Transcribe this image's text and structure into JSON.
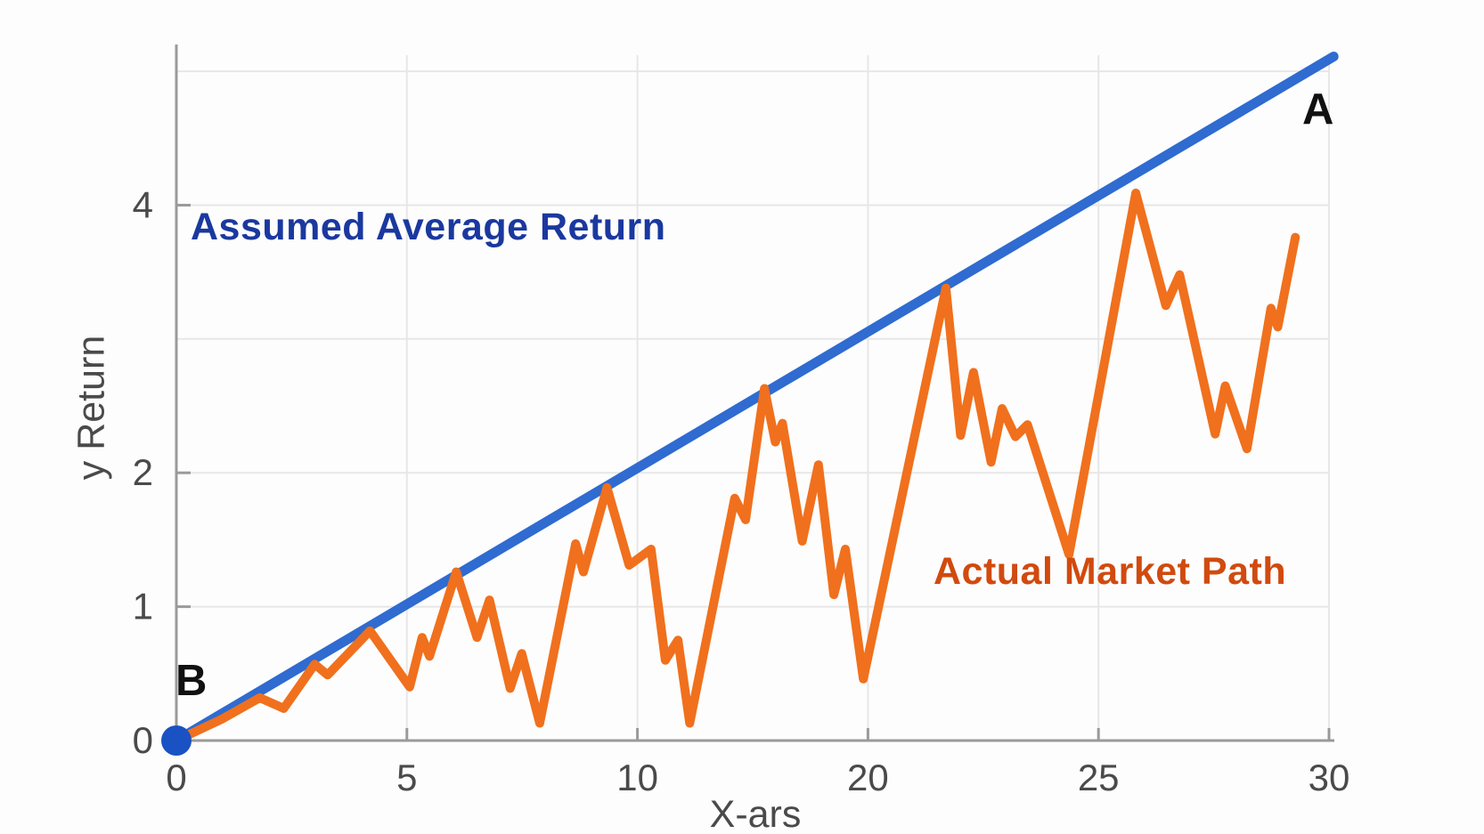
{
  "chart_data": {
    "type": "line",
    "title": "",
    "xlabel": "X-ars",
    "ylabel": "y Return",
    "x_tick_labels": [
      "0",
      "5",
      "10",
      "20",
      "25",
      "30"
    ],
    "x_tick_values": [
      0,
      5,
      10,
      20,
      25,
      30
    ],
    "y_tick_labels": [
      "0",
      "1",
      "2",
      "4"
    ],
    "y_tick_values": [
      0,
      1,
      2,
      4
    ],
    "y_gridline_values": [
      1,
      2,
      3,
      4,
      5
    ],
    "ylim": [
      0,
      5.2
    ],
    "grid": true,
    "legend_position": "none",
    "colors": {
      "grid": "#e7e7e7",
      "axis": "#9a9a9a",
      "tick_text": "#4a4a4a"
    },
    "series": [
      {
        "name": "Assumed Average Return",
        "color": "#2f6bd0",
        "label_color": "#1a389f",
        "stroke_width": 11,
        "points": [
          [
            0,
            0
          ],
          [
            30.1,
            5.11
          ]
        ]
      },
      {
        "name": "Actual Market Path",
        "color": "#f0701d",
        "label_color": "#d14a0e",
        "stroke_width": 10,
        "points": [
          [
            0,
            0
          ],
          [
            0.99,
            0.16
          ],
          [
            1.81,
            0.32
          ],
          [
            2.33,
            0.24
          ],
          [
            3.0,
            0.57
          ],
          [
            3.28,
            0.49
          ],
          [
            4.2,
            0.82
          ],
          [
            5.06,
            0.4
          ],
          [
            5.33,
            0.77
          ],
          [
            5.49,
            0.63
          ],
          [
            6.07,
            1.26
          ],
          [
            6.52,
            0.77
          ],
          [
            6.79,
            1.05
          ],
          [
            7.24,
            0.39
          ],
          [
            7.49,
            0.65
          ],
          [
            7.88,
            0.13
          ],
          [
            8.66,
            1.47
          ],
          [
            8.83,
            1.26
          ],
          [
            9.34,
            1.89
          ],
          [
            9.82,
            1.31
          ],
          [
            10.59,
            1.43
          ],
          [
            11.21,
            0.6
          ],
          [
            11.76,
            0.75
          ],
          [
            12.27,
            0.13
          ],
          [
            14.22,
            1.81
          ],
          [
            14.69,
            1.65
          ],
          [
            15.51,
            2.63
          ],
          [
            15.98,
            2.23
          ],
          [
            16.29,
            2.37
          ],
          [
            17.15,
            1.49
          ],
          [
            17.85,
            2.06
          ],
          [
            18.52,
            1.09
          ],
          [
            19.02,
            1.43
          ],
          [
            19.8,
            0.46
          ],
          [
            21.69,
            3.38
          ],
          [
            22.01,
            2.28
          ],
          [
            22.29,
            2.75
          ],
          [
            22.67,
            2.08
          ],
          [
            22.91,
            2.48
          ],
          [
            23.2,
            2.27
          ],
          [
            23.46,
            2.36
          ],
          [
            24.36,
            1.39
          ],
          [
            25.81,
            4.09
          ],
          [
            26.46,
            3.25
          ],
          [
            26.76,
            3.48
          ],
          [
            27.53,
            2.29
          ],
          [
            27.75,
            2.65
          ],
          [
            28.22,
            2.18
          ],
          [
            28.74,
            3.23
          ],
          [
            28.89,
            3.09
          ],
          [
            29.27,
            3.76
          ]
        ]
      }
    ],
    "point_labels": [
      {
        "text": "A",
        "color": "#111111",
        "at": "end of assumed average return line"
      },
      {
        "text": "B",
        "color": "#111111",
        "at": "origin"
      }
    ],
    "origin_marker": {
      "x": 0,
      "y": 0,
      "color": "#1a52c4",
      "radius": 17
    }
  }
}
